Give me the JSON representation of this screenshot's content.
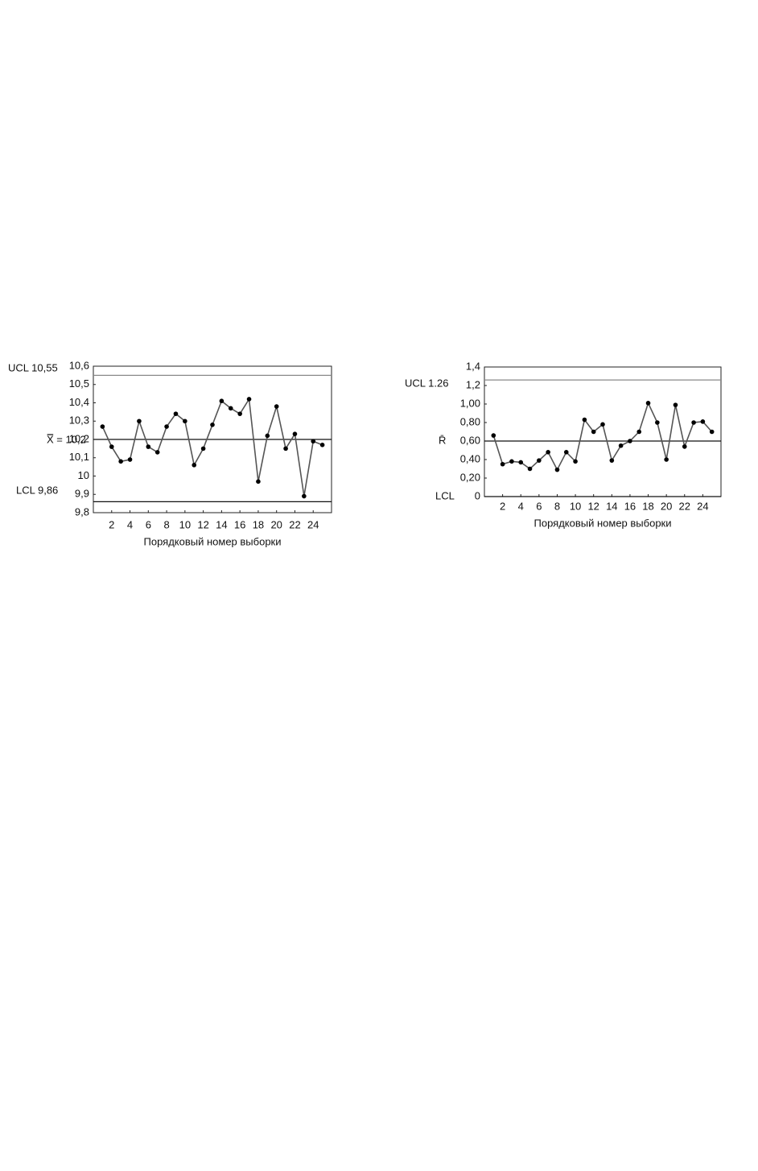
{
  "chart_data": [
    {
      "type": "line",
      "x_label": "Порядковый номер выборки",
      "x": [
        1,
        2,
        3,
        4,
        5,
        6,
        7,
        8,
        9,
        10,
        11,
        12,
        13,
        14,
        15,
        16,
        17,
        18,
        19,
        20,
        21,
        22,
        23,
        24,
        25
      ],
      "series": [
        {
          "color": "#555555",
          "values": [
            10.27,
            10.16,
            10.08,
            10.09,
            10.3,
            10.16,
            10.13,
            10.27,
            10.34,
            10.3,
            10.06,
            10.15,
            10.28,
            10.41,
            10.37,
            10.34,
            10.42,
            9.97,
            10.22,
            10.38,
            10.15,
            10.23,
            9.89,
            10.19,
            10.17
          ]
        }
      ],
      "xlim": [
        0,
        26
      ],
      "xticks": [
        2,
        4,
        6,
        8,
        10,
        12,
        14,
        16,
        18,
        20,
        22,
        24
      ],
      "ylim": [
        9.8,
        10.6
      ],
      "yticks": [
        {
          "value": 9.8,
          "label": "9,8"
        },
        {
          "value": 9.9,
          "label": "9,9"
        },
        10,
        {
          "value": 10.1,
          "label": "10,1"
        },
        {
          "value": 10.2,
          "label": "10,2"
        },
        {
          "value": 10.3,
          "label": "10,3"
        },
        {
          "value": 10.4,
          "label": "10,4"
        },
        {
          "value": 10.5,
          "label": "10,5"
        },
        {
          "value": 10.6,
          "label": "10,6"
        }
      ],
      "ucl": {
        "value": 10.55,
        "label": "UCL 10,55"
      },
      "center": {
        "value": 10.2,
        "label": "X̿ = 10,2"
      },
      "lcl": {
        "value": 9.86,
        "label": "LCL 9,86"
      }
    },
    {
      "type": "line",
      "x_label": "Порядковый номер выборки",
      "x": [
        1,
        2,
        3,
        4,
        5,
        6,
        7,
        8,
        9,
        10,
        11,
        12,
        13,
        14,
        15,
        16,
        17,
        18,
        19,
        20,
        21,
        22,
        23,
        24,
        25
      ],
      "series": [
        {
          "color": "#555555",
          "values": [
            0.66,
            0.35,
            0.38,
            0.37,
            0.3,
            0.39,
            0.48,
            0.29,
            0.48,
            0.38,
            0.83,
            0.7,
            0.78,
            0.39,
            0.55,
            0.6,
            0.7,
            1.01,
            0.8,
            0.4,
            0.99,
            0.54,
            0.8,
            0.81,
            0.7
          ]
        }
      ],
      "xlim": [
        0,
        26
      ],
      "xticks": [
        2,
        4,
        6,
        8,
        10,
        12,
        14,
        16,
        18,
        20,
        22,
        24
      ],
      "ylim": [
        0,
        1.4
      ],
      "yticks": [
        0,
        {
          "value": 0.2,
          "label": "0,20"
        },
        {
          "value": 0.4,
          "label": "0,40"
        },
        {
          "value": 0.6,
          "label": "0,60"
        },
        {
          "value": 0.8,
          "label": "0,80"
        },
        {
          "value": 1.0,
          "label": "1,00"
        },
        {
          "value": 1.2,
          "label": "1,2"
        },
        {
          "value": 1.4,
          "label": "1,4"
        }
      ],
      "ucl": {
        "value": 1.26,
        "label": "UCL 1.26"
      },
      "center": {
        "value": 0.6,
        "label": "R̄"
      },
      "lcl": {
        "value": 0,
        "label": "LCL"
      }
    }
  ]
}
